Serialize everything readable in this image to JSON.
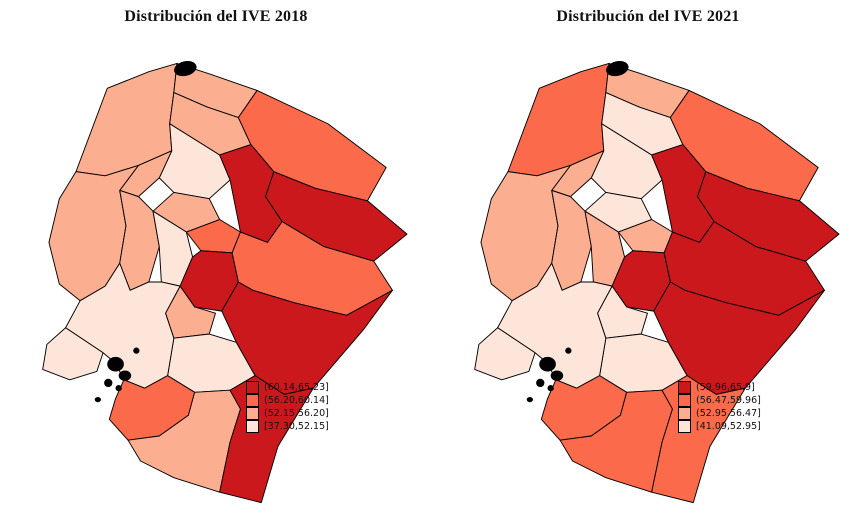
{
  "page": {
    "background": "#ffffff"
  },
  "palette_low_to_high": [
    "#fee5d9",
    "#fcae91",
    "#fb6a4a",
    "#cb181d"
  ],
  "map_border_color": "#000000",
  "urban_cluster_color": "#000000",
  "chart_data": [
    {
      "type": "choropleth",
      "title": "Distribución del IVE 2018",
      "legend": [
        {
          "label": "(60.14,65.23]",
          "color": "#cb181d"
        },
        {
          "label": "(56.20,60.14]",
          "color": "#fb6a4a"
        },
        {
          "label": "(52.15,56.20]",
          "color": "#fcae91"
        },
        {
          "label": "[37.30,52.15]",
          "color": "#fee5d9"
        }
      ],
      "classes": {
        "esmeraldas": 1,
        "carchi": 1,
        "imbabura": 1,
        "sucumbios": 2,
        "orellana": 3,
        "pichincha": 0,
        "santo_domingo": 1,
        "napo": 3,
        "manabi": 1,
        "los_rios": 1,
        "cotopaxi": 1,
        "tungurahua": 2,
        "bolivar": 0,
        "chimborazo": 3,
        "pastaza": 2,
        "morona_santiago": 3,
        "canar": 1,
        "azuay": 0,
        "guayas": 0,
        "santa_elena": 0,
        "el_oro": 2,
        "loja": 1,
        "zamora_chinchipe": 3
      }
    },
    {
      "type": "choropleth",
      "title": "Distribución del IVE 2021",
      "legend": [
        {
          "label": "(59.96,65.9]",
          "color": "#cb181d"
        },
        {
          "label": "(56.47,59.96]",
          "color": "#fb6a4a"
        },
        {
          "label": "(52.95,56.47]",
          "color": "#fcae91"
        },
        {
          "label": "[41.09,52.95]",
          "color": "#fee5d9"
        }
      ],
      "classes": {
        "esmeraldas": 2,
        "carchi": 1,
        "imbabura": 0,
        "sucumbios": 2,
        "orellana": 3,
        "pichincha": 0,
        "santo_domingo": 1,
        "napo": 3,
        "manabi": 1,
        "los_rios": 1,
        "cotopaxi": 0,
        "tungurahua": 1,
        "bolivar": 1,
        "chimborazo": 3,
        "pastaza": 3,
        "morona_santiago": 3,
        "canar": 0,
        "azuay": 0,
        "guayas": 0,
        "santa_elena": 0,
        "el_oro": 2,
        "loja": 2,
        "zamora_chinchipe": 2
      }
    }
  ]
}
